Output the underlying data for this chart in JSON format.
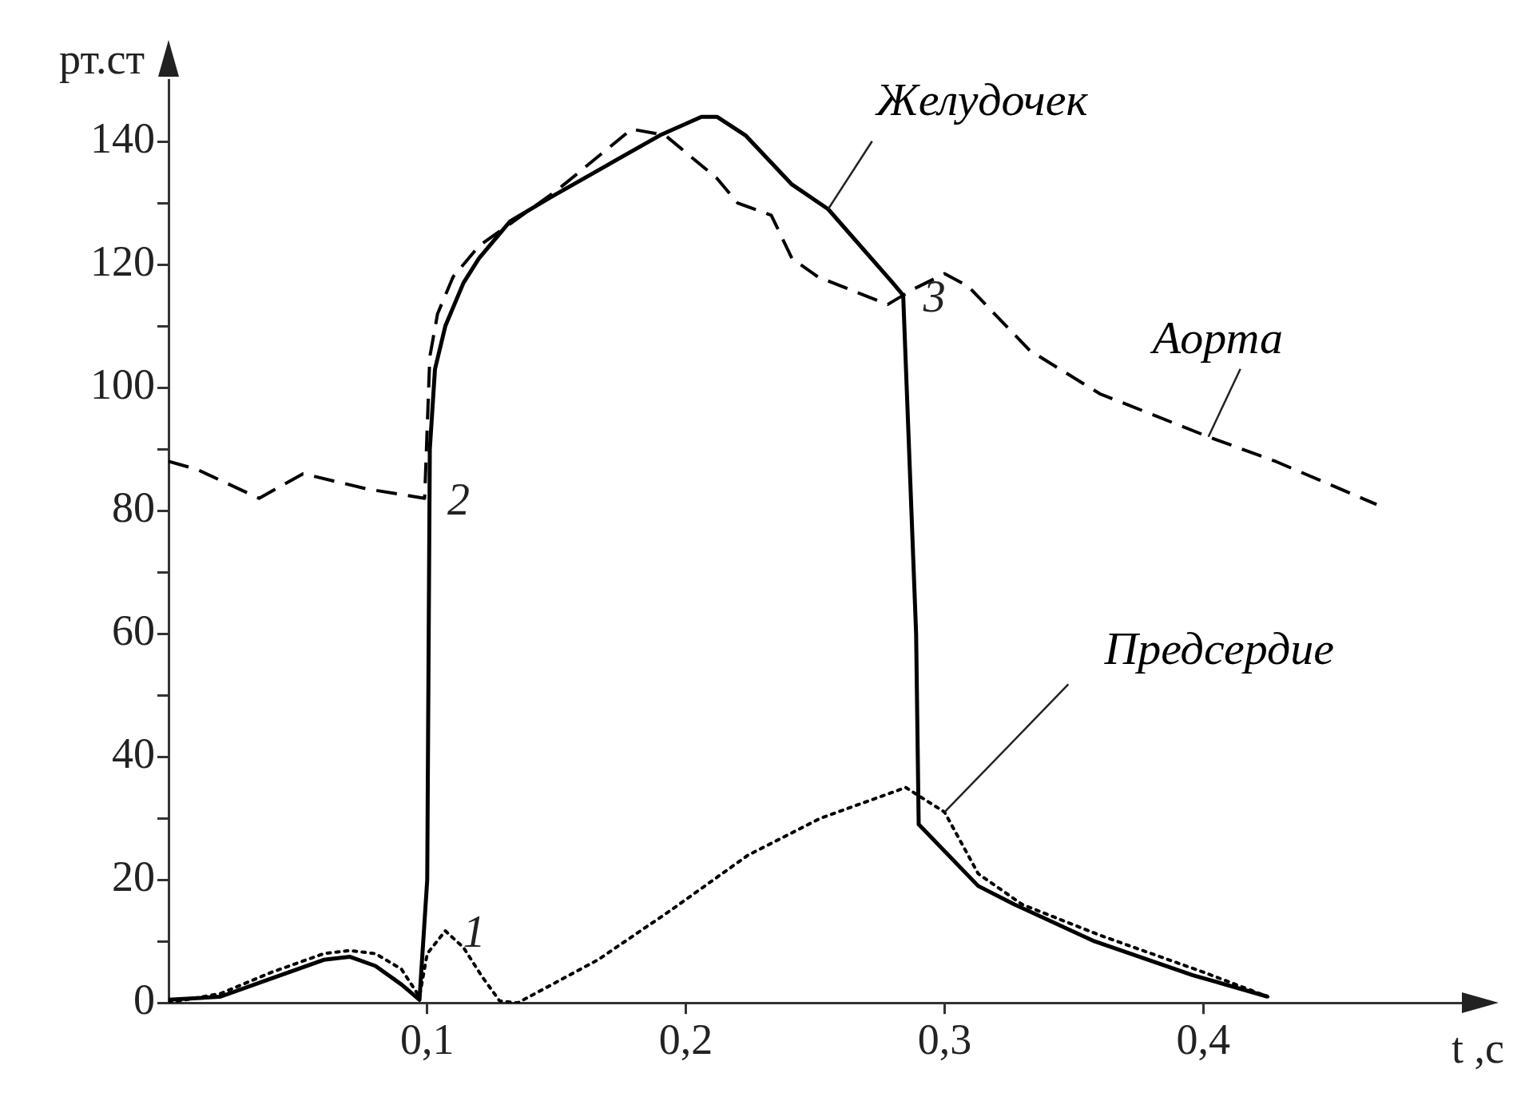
{
  "chart_data": {
    "type": "line",
    "xlabel": "t ,c",
    "ylabel": "рт.ст",
    "xlim": [
      0,
      0.5
    ],
    "ylim": [
      0,
      150
    ],
    "xticks": [
      {
        "value": 0.1,
        "label": "0,1"
      },
      {
        "value": 0.2,
        "label": "0,2"
      },
      {
        "value": 0.3,
        "label": "0,3"
      },
      {
        "value": 0.4,
        "label": "0,4"
      }
    ],
    "yticks": [
      0,
      {
        "value": 10,
        "label": null
      },
      20,
      {
        "value": 30,
        "label": null
      },
      40,
      {
        "value": 50,
        "label": null
      },
      60,
      {
        "value": 70,
        "label": null
      },
      80,
      {
        "value": 90,
        "label": null
      },
      100,
      {
        "value": 110,
        "label": null
      },
      120,
      {
        "value": 130,
        "label": null
      },
      140
    ],
    "grid": false,
    "legend": false,
    "marker": "none",
    "series": [
      {
        "name": "Желудочек",
        "color": "#000000",
        "line_style": "solid",
        "x": [
          0,
          0.02,
          0.04,
          0.06,
          0.07,
          0.08,
          0.09,
          0.097,
          0.1,
          0.101,
          0.103,
          0.107,
          0.114,
          0.12,
          0.132,
          0.148,
          0.169,
          0.19,
          0.206,
          0.212,
          0.223,
          0.241,
          0.255,
          0.28,
          0.284,
          0.289,
          0.29,
          0.313,
          0.327,
          0.358,
          0.396,
          0.425
        ],
        "values": [
          0.5,
          1,
          4,
          7,
          7.5,
          6,
          3,
          0.5,
          20,
          90,
          103,
          110,
          117,
          121,
          127,
          131,
          136,
          141,
          144,
          144,
          141,
          133,
          129,
          117,
          115,
          60,
          29,
          19,
          16,
          10,
          4.5,
          1
        ]
      },
      {
        "name": "Аорта",
        "color": "#000000",
        "line_style": "dashed",
        "x": [
          0,
          0.011,
          0.035,
          0.052,
          0.077,
          0.099,
          0.101,
          0.104,
          0.11,
          0.12,
          0.15,
          0.179,
          0.192,
          0.212,
          0.22,
          0.233,
          0.241,
          0.251,
          0.278,
          0.288,
          0.3,
          0.309,
          0.333,
          0.36,
          0.402,
          0.428,
          0.467
        ],
        "values": [
          88,
          86.7,
          82,
          86,
          83.5,
          82,
          105,
          112,
          118,
          123,
          132,
          142,
          141,
          134,
          130,
          128,
          121,
          118,
          113.5,
          116,
          118.5,
          116.5,
          106,
          99,
          92,
          88,
          81
        ]
      },
      {
        "name": "Предсердие",
        "color": "#000000",
        "line_style": "dotted",
        "x": [
          0,
          0.02,
          0.04,
          0.06,
          0.07,
          0.08,
          0.09,
          0.097,
          0.1,
          0.107,
          0.114,
          0.121,
          0.128,
          0.135,
          0.166,
          0.194,
          0.224,
          0.252,
          0.285,
          0.3,
          0.313,
          0.33,
          0.36,
          0.4,
          0.425
        ],
        "values": [
          0,
          1.5,
          5,
          8,
          8.5,
          8,
          5.5,
          1,
          8,
          11.7,
          9,
          4.4,
          0.3,
          0,
          7,
          15,
          24,
          30,
          35,
          31,
          21,
          16,
          11,
          5,
          1
        ]
      }
    ],
    "annotations": [
      {
        "text": "1",
        "x": 0.107,
        "y": 11.7
      },
      {
        "text": "2",
        "x": 0.101,
        "y": 82
      },
      {
        "text": "3",
        "x": 0.285,
        "y": 115
      }
    ]
  }
}
